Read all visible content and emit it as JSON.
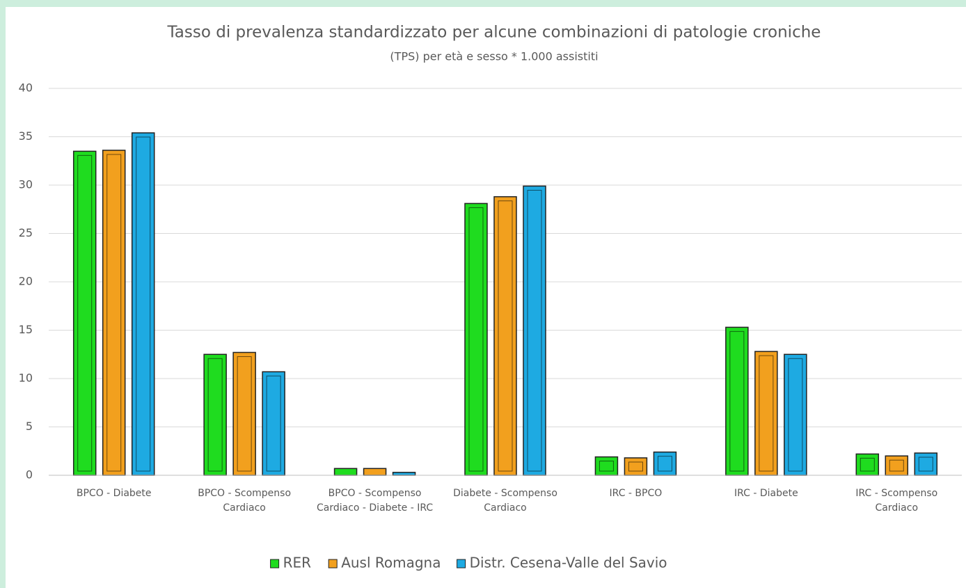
{
  "chart_data": {
    "type": "bar",
    "title": "Tasso di prevalenza standardizzato per alcune combinazioni di patologie croniche",
    "subtitle": "(TPS) per età e sesso * 1.000 assistiti",
    "categories": [
      "BPCO - Diabete",
      "BPCO - Scompenso Cardiaco",
      "BPCO - Scompenso Cardiaco - Diabete - IRC",
      "Diabete - Scompenso Cardiaco",
      "IRC - BPCO",
      "IRC - Diabete",
      "IRC - Scompenso Cardiaco"
    ],
    "series": [
      {
        "name": "RER",
        "color": "#1fdc1f",
        "values": [
          33.5,
          12.5,
          0.7,
          28.1,
          1.9,
          15.3,
          2.2
        ]
      },
      {
        "name": "Ausl Romagna",
        "color": "#f2a01e",
        "values": [
          33.6,
          12.7,
          0.7,
          28.8,
          1.8,
          12.8,
          2.0
        ]
      },
      {
        "name": "Distr. Cesena-Valle del Savio",
        "color": "#1eaae2",
        "values": [
          35.4,
          10.7,
          0.3,
          29.9,
          2.4,
          12.5,
          2.3
        ]
      }
    ],
    "ylim": [
      0,
      40
    ],
    "yticks": [
      0,
      5,
      10,
      15,
      20,
      25,
      30,
      35,
      40
    ],
    "grid": true,
    "legend": "bottom"
  }
}
